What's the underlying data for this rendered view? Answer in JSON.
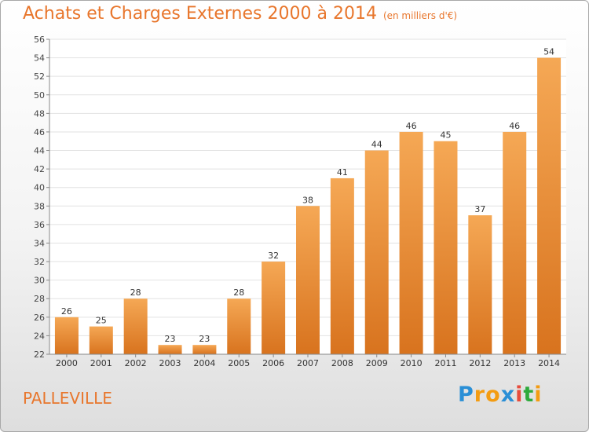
{
  "title": "Achats et Charges Externes 2000 à 2014",
  "subtitle": "(en milliers d'€)",
  "commune": "PALLEVILLE",
  "logo": {
    "letters": [
      "P",
      "r",
      "o",
      "x",
      "i",
      "t",
      "i"
    ],
    "colors": [
      "#2a8fd6",
      "#f39c12",
      "#f39c12",
      "#2a8fd6",
      "#e74c3c",
      "#2eaa3c",
      "#f39c12"
    ]
  },
  "colors": {
    "bar": "#f0a050",
    "accent": "#e8762c"
  },
  "chart_data": {
    "type": "bar",
    "categories": [
      "2000",
      "2001",
      "2002",
      "2003",
      "2004",
      "2005",
      "2006",
      "2007",
      "2008",
      "2009",
      "2010",
      "2011",
      "2012",
      "2013",
      "2014"
    ],
    "values": [
      26,
      25,
      28,
      23,
      23,
      28,
      32,
      38,
      41,
      44,
      46,
      45,
      37,
      46,
      54
    ],
    "ylim": [
      22,
      56
    ],
    "yticks": [
      22,
      24,
      26,
      28,
      30,
      32,
      34,
      36,
      38,
      40,
      42,
      44,
      46,
      48,
      50,
      52,
      54,
      56
    ],
    "grid": true
  }
}
